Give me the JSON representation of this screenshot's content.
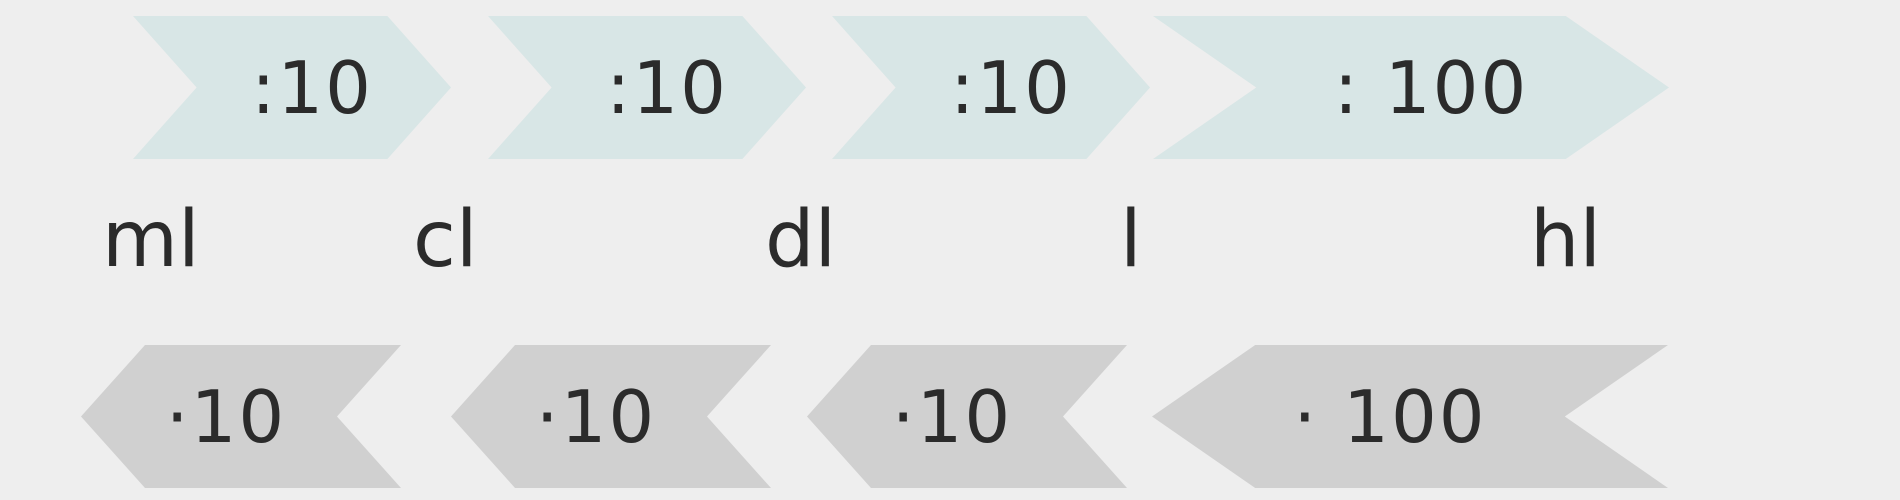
{
  "multiply_labels": [
    ":10",
    ":10",
    ":10",
    ": 100"
  ],
  "units": [
    "ml",
    "cl",
    "dl",
    "l",
    "hl"
  ],
  "divide_labels": [
    "·10",
    "·10",
    "·10",
    "· 100"
  ],
  "colors": {
    "top_arrow": "#d8e6e6",
    "bottom_arrow": "#d0d0d0",
    "background": "#eeeeee",
    "text": "#2b2b2b"
  }
}
